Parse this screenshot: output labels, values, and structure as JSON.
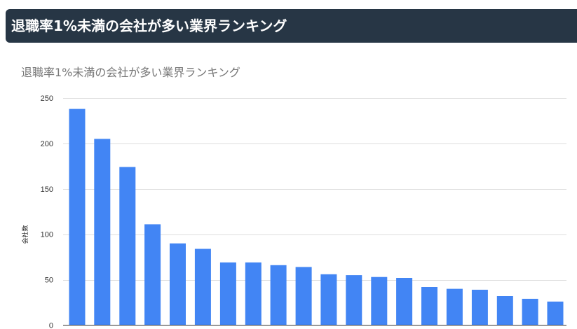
{
  "header": {
    "title": "退職率1%未満の会社が多い業界ランキング"
  },
  "colors": {
    "header_bg": "#273645",
    "bar": "#4285f4",
    "grid": "#dddddd"
  },
  "chart_data": {
    "type": "bar",
    "title": "退職率1%未満の会社が多い業界ランキング",
    "xlabel": "",
    "ylabel": "会社数",
    "ylim": [
      0,
      250
    ],
    "yticks": [
      0,
      50,
      100,
      150,
      200,
      250
    ],
    "ytick_labels": [
      "0",
      "50",
      "100",
      "150",
      "200",
      "250"
    ],
    "grid": true,
    "legend": "none",
    "values": [
      238,
      205,
      174,
      111,
      90,
      84,
      69,
      69,
      66,
      64,
      56,
      55,
      53,
      52,
      42,
      40,
      39,
      32,
      29,
      26
    ]
  }
}
